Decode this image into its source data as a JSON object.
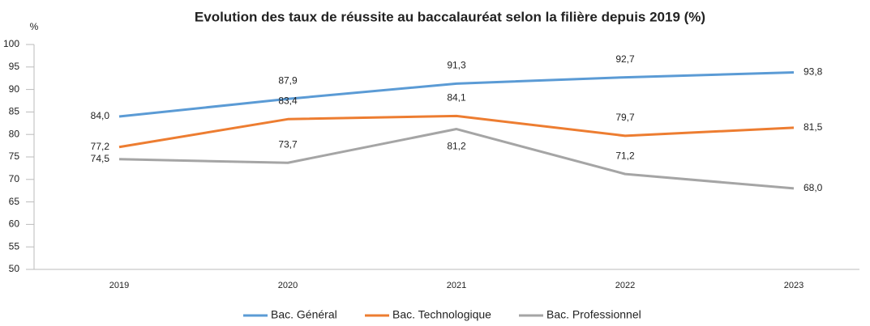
{
  "chart_data": {
    "type": "line",
    "title": "Evolution des taux de réussite au baccalauréat selon la filière depuis 2019 (%)",
    "y_label": "%",
    "categories": [
      "2019",
      "2020",
      "2021",
      "2022",
      "2023"
    ],
    "series": [
      {
        "name": "Bac. Général",
        "color": "#5b9bd5",
        "values": [
          84.0,
          87.9,
          91.3,
          92.7,
          93.8
        ],
        "value_labels": [
          "84,0",
          "87,9",
          "91,3",
          "92,7",
          "93,8"
        ]
      },
      {
        "name": "Bac. Technologique",
        "color": "#ed7d31",
        "values": [
          77.2,
          83.4,
          84.1,
          79.7,
          81.5
        ],
        "value_labels": [
          "77,2",
          "83,4",
          "84,1",
          "79,7",
          "81,5"
        ]
      },
      {
        "name": "Bac. Professionnel",
        "color": "#a5a5a5",
        "values": [
          74.5,
          73.7,
          81.2,
          71.2,
          68.0
        ],
        "value_labels": [
          "74,5",
          "73,7",
          "81,2",
          "71,2",
          "68,0"
        ]
      }
    ],
    "ylim": [
      50,
      100
    ],
    "yticks": [
      50,
      55,
      60,
      65,
      70,
      75,
      80,
      85,
      90,
      95,
      100
    ],
    "grid": false,
    "legend": "bottom"
  }
}
